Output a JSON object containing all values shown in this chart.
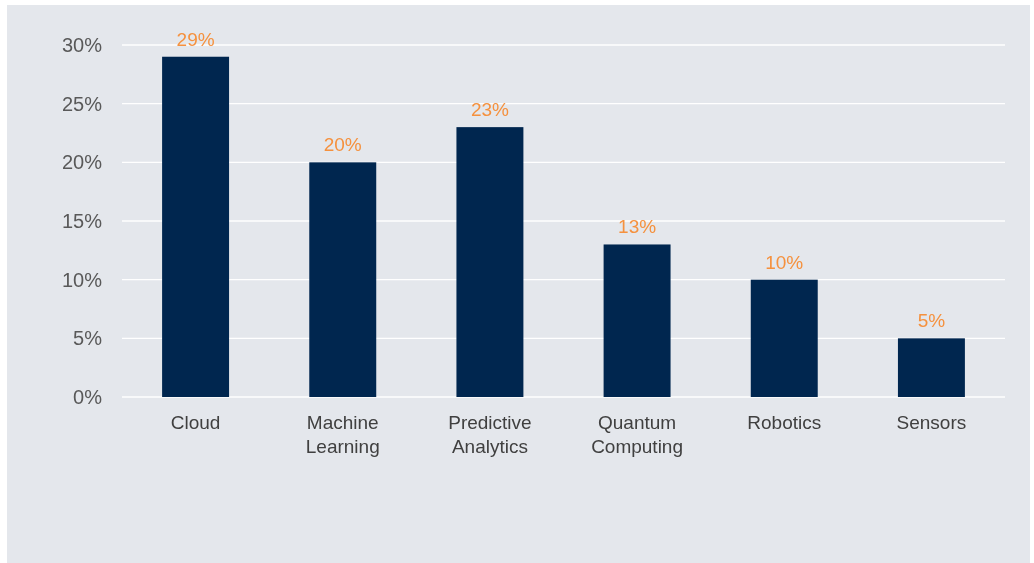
{
  "chart_data": {
    "type": "bar",
    "categories": [
      "Cloud",
      "Machine Learning",
      "Predictive Analytics",
      "Quantum Computing",
      "Robotics",
      "Sensors"
    ],
    "values": [
      29,
      20,
      23,
      13,
      10,
      5
    ],
    "color": "#00264f",
    "value_labels": [
      "29%",
      "20%",
      "23%",
      "13%",
      "10%",
      "5%"
    ],
    "ylim": [
      0,
      30
    ],
    "yticks": [
      {
        "value": 0,
        "label": "0%"
      },
      {
        "value": 5,
        "label": "5%"
      },
      {
        "value": 10,
        "label": "10%"
      },
      {
        "value": 15,
        "label": "15%"
      },
      {
        "value": 20,
        "label": "20%"
      },
      {
        "value": 25,
        "label": "25%"
      },
      {
        "value": 30,
        "label": "30%"
      }
    ],
    "grid": "y"
  }
}
